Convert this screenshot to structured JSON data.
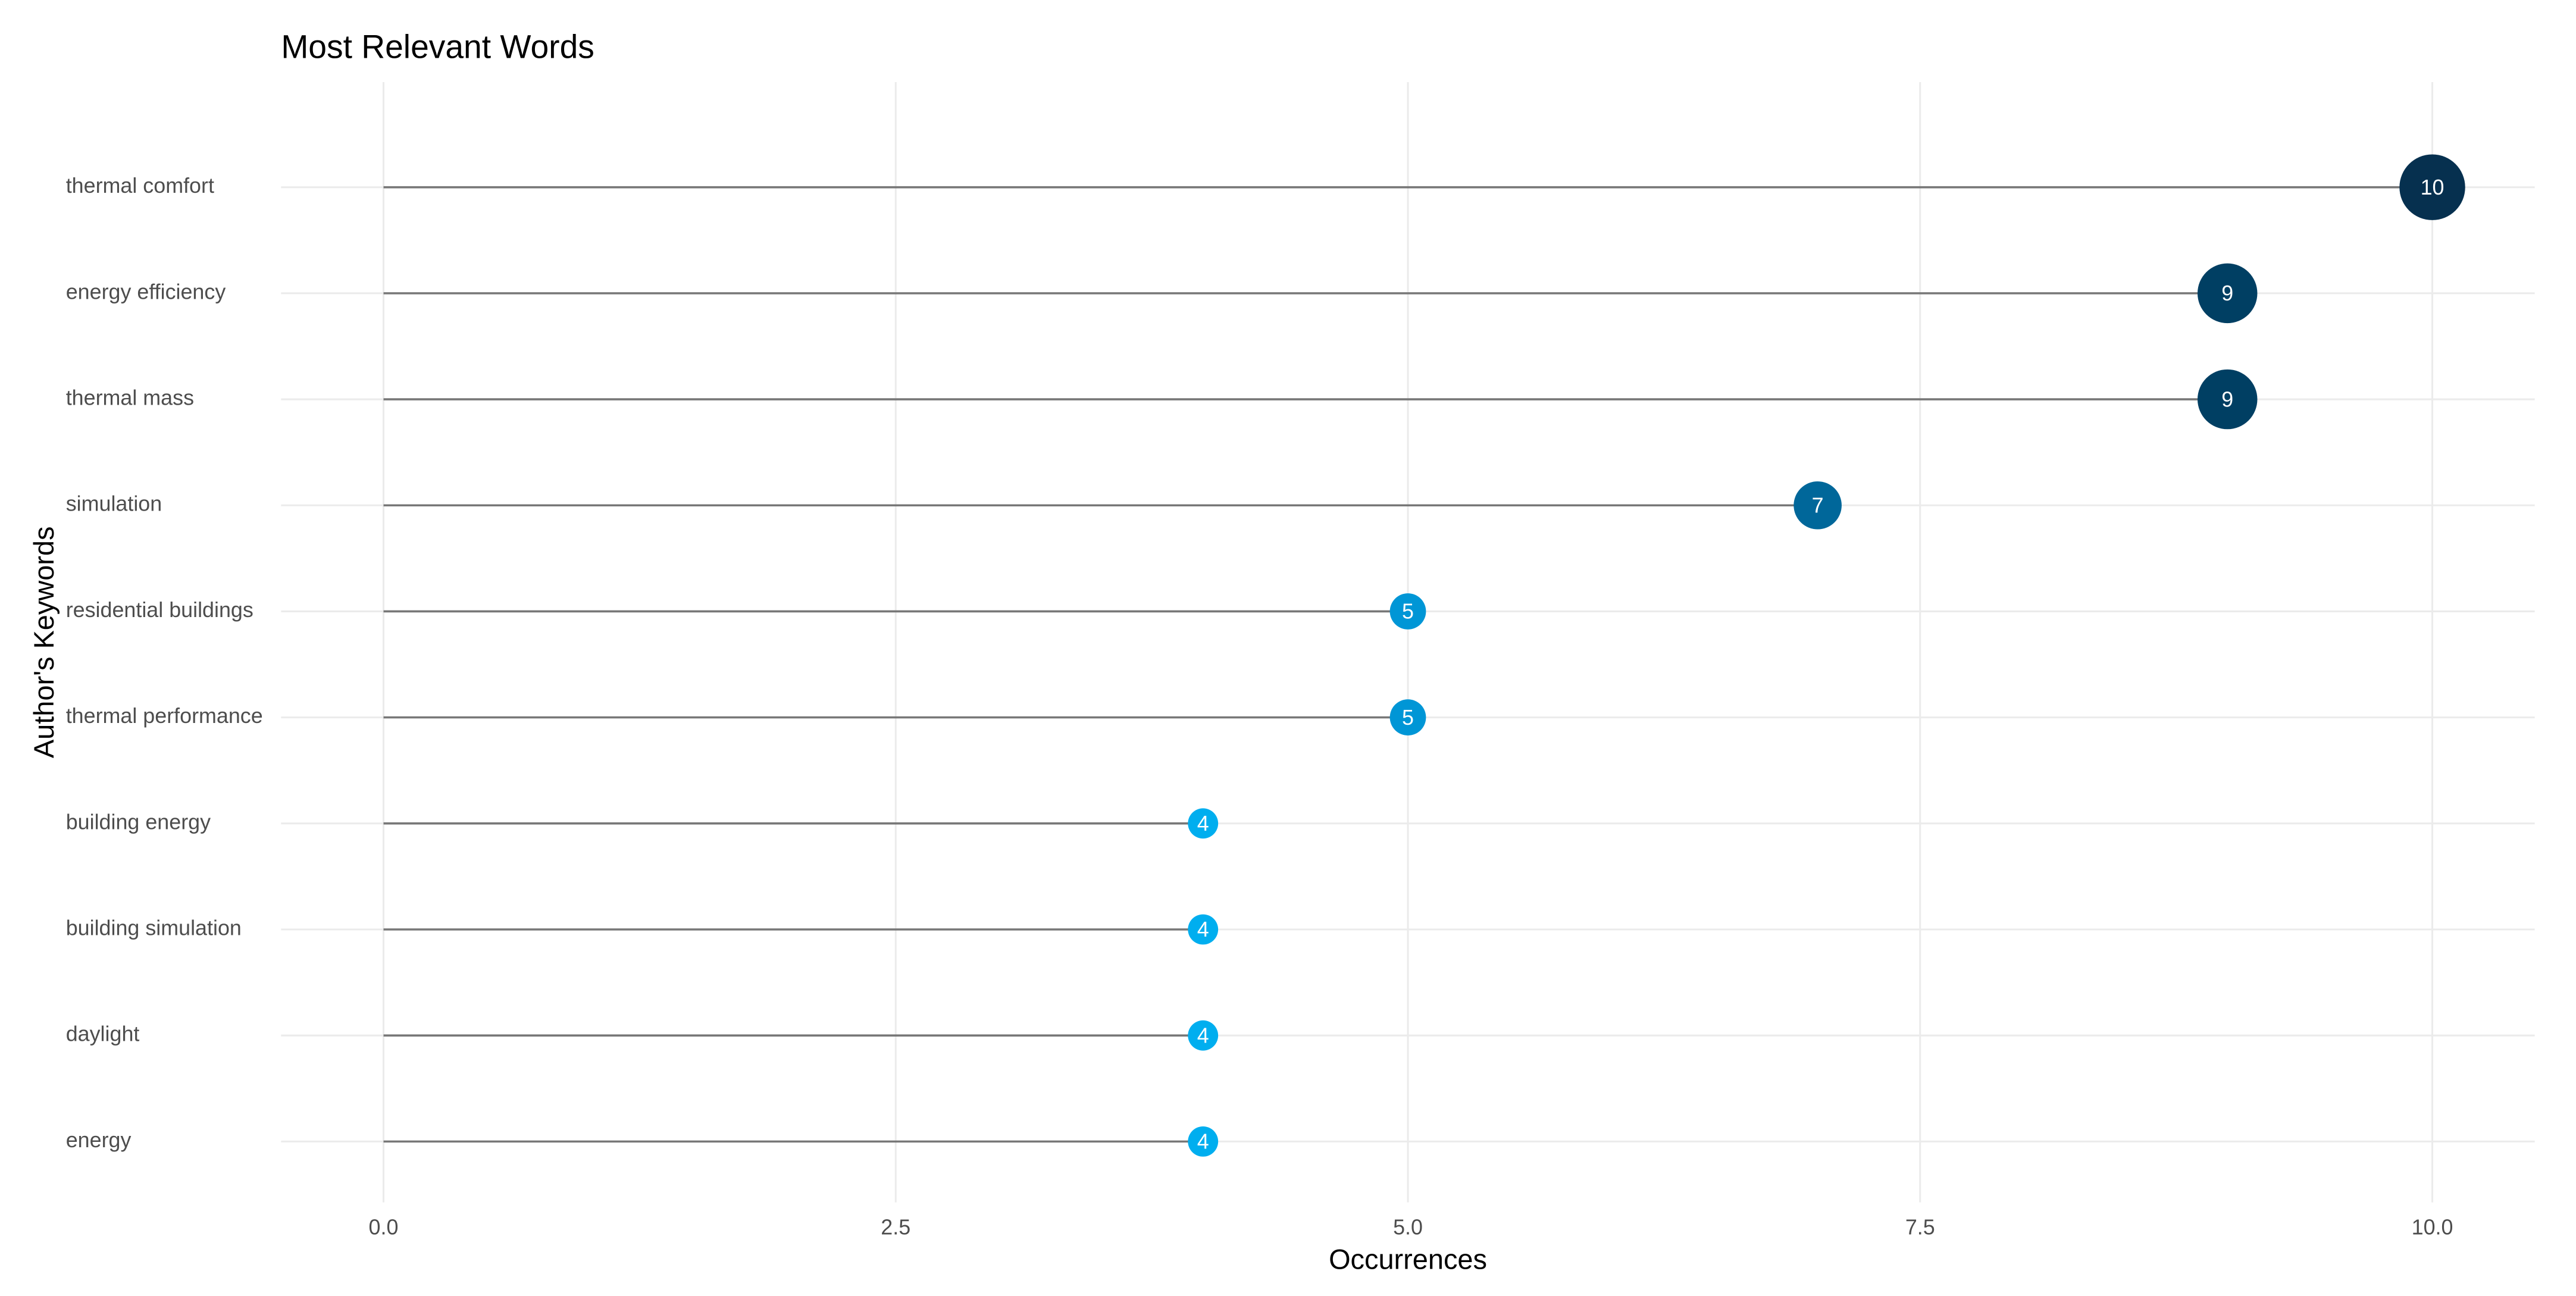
{
  "chart_data": {
    "type": "lollipop",
    "title": "Most Relevant Words",
    "x_label": "Occurrences",
    "y_label": "Author's Keywords",
    "categories": [
      "thermal comfort",
      "energy efficiency",
      "thermal mass",
      "simulation",
      "residential buildings",
      "thermal performance",
      "building energy",
      "building simulation",
      "daylight",
      "energy"
    ],
    "values": [
      10,
      9,
      9,
      7,
      5,
      5,
      4,
      4,
      4,
      4
    ],
    "colors": [
      "#06304f",
      "#003f63",
      "#003f63",
      "#00679a",
      "#0096d6",
      "#0096d6",
      "#00aeef",
      "#00aeef",
      "#00aeef",
      "#00aeef"
    ],
    "stem_color": "#777777",
    "xlim": [
      -0.5,
      10.5
    ],
    "xticks": [
      {
        "value": 0,
        "label": "0.0"
      },
      {
        "value": 2.5,
        "label": "2.5"
      },
      {
        "value": 5,
        "label": "5.0"
      },
      {
        "value": 7.5,
        "label": "7.5"
      },
      {
        "value": 10,
        "label": "10.0"
      }
    ],
    "grid": true
  }
}
